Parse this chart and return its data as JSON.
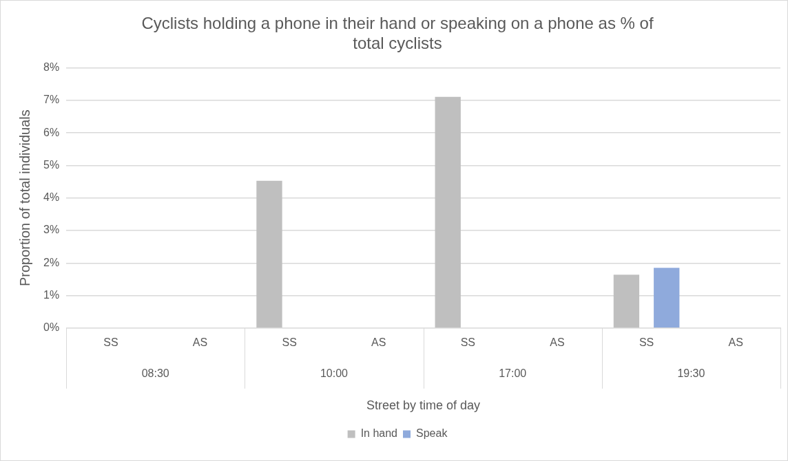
{
  "chart_data": {
    "type": "bar",
    "title": "Cyclists holding a phone in their hand or speaking on a phone as % of total cyclists",
    "xlabel": "Street by time of day",
    "ylabel": "Proportion of total individuals",
    "categories": [
      "SS",
      "AS",
      "SS",
      "AS",
      "SS",
      "AS",
      "SS",
      "AS"
    ],
    "annotations": [
      "08:30",
      "10:00",
      "17:00",
      "19:30"
    ],
    "series": [
      {
        "name": "In hand",
        "color": "#bfbfbf",
        "values": [
          0,
          0,
          4.53,
          0,
          7.11,
          0,
          1.64,
          0
        ]
      },
      {
        "name": "Speak",
        "color": "#8faadc",
        "values": [
          0,
          0,
          0,
          0,
          0,
          0,
          1.85,
          0
        ]
      }
    ],
    "ylim": [
      0,
      8
    ],
    "yticks": [
      {
        "value": 0,
        "label": "0%"
      },
      {
        "value": 1,
        "label": "1%"
      },
      {
        "value": 2,
        "label": "2%"
      },
      {
        "value": 3,
        "label": "3%"
      },
      {
        "value": 4,
        "label": "4%"
      },
      {
        "value": 5,
        "label": "5%"
      },
      {
        "value": 6,
        "label": "6%"
      },
      {
        "value": 7,
        "label": "7%"
      },
      {
        "value": 8,
        "label": "8%"
      }
    ],
    "grid": "y",
    "legend": "bottom"
  }
}
